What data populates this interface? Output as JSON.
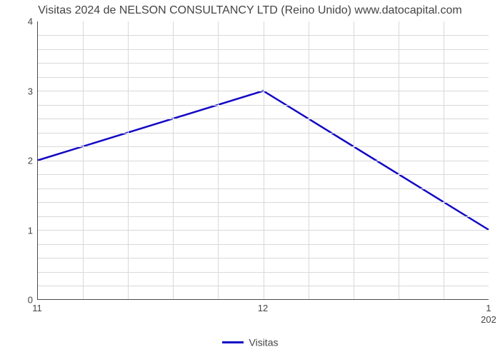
{
  "chart": {
    "type": "line",
    "title": "Visitas 2024 de NELSON CONSULTANCY LTD (Reino Unido) www.datocapital.com",
    "title_fontsize": 16,
    "background_color": "#ffffff",
    "axis_color": "#4a4a4a",
    "grid_color": "#d9d9d9",
    "text_color": "#444444",
    "tick_fontsize": 13,
    "x": {
      "min": 11,
      "max": 13,
      "ticks": [
        11,
        12,
        13
      ],
      "tick_labels": [
        "11",
        "12",
        "1"
      ],
      "secondary_labels": {
        "13": "202"
      },
      "minor_step": 0.2
    },
    "y": {
      "min": 0,
      "max": 4,
      "ticks": [
        0,
        1,
        2,
        3,
        4
      ],
      "tick_labels": [
        "0",
        "1",
        "2",
        "3",
        "4"
      ],
      "minor_step": 0.2
    },
    "series": [
      {
        "name": "Visitas",
        "color": "#1207c4",
        "line_width": 2.5,
        "points": [
          {
            "x": 11,
            "y": 2
          },
          {
            "x": 12,
            "y": 3
          },
          {
            "x": 13,
            "y": 1
          }
        ]
      }
    ],
    "legend": {
      "position": "bottom-center",
      "items": [
        {
          "label": "Visitas",
          "color": "#1207c4",
          "line_width": 3
        }
      ]
    }
  }
}
